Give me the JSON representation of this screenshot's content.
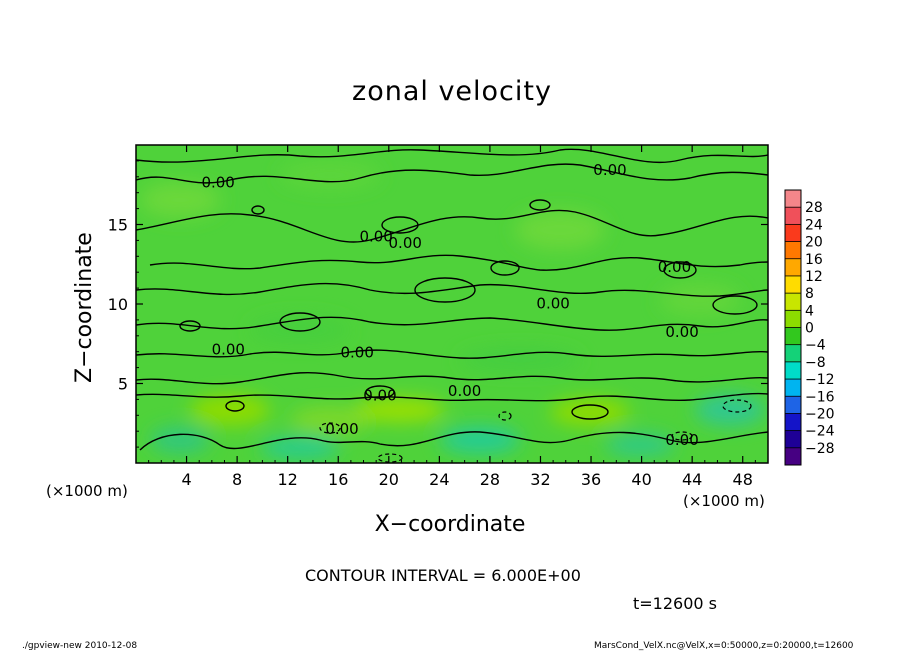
{
  "chart_data": {
    "type": "heatmap",
    "title": "zonal velocity",
    "xlabel": "X−coordinate",
    "ylabel": "Z−coordinate",
    "x_unit_label": "(×1000 m)",
    "x_range": [
      0,
      50
    ],
    "y_range": [
      0,
      20
    ],
    "x_ticks": [
      4,
      8,
      12,
      16,
      20,
      24,
      28,
      32,
      36,
      40,
      44,
      48
    ],
    "y_ticks": [
      5,
      10,
      15
    ],
    "colorbar": {
      "labels": [
        "28",
        "24",
        "20",
        "16",
        "12",
        "8",
        "4",
        "0",
        "−4",
        "−8",
        "−12",
        "−16",
        "−20",
        "−24",
        "−28"
      ],
      "colors": [
        "#f4868a",
        "#f0505a",
        "#fa3a1c",
        "#ff7800",
        "#ffa800",
        "#ffdc00",
        "#c8e600",
        "#8cdc00",
        "#32c81e",
        "#14d278",
        "#00dcc8",
        "#00b4f0",
        "#1e64e6",
        "#1414c8",
        "#1e0096",
        "#460082"
      ]
    },
    "contour_labels": [
      {
        "text": "0.00",
        "x": 6.5,
        "z": 17.7
      },
      {
        "text": "0.00",
        "x": 19.0,
        "z": 14.3
      },
      {
        "text": "0.00",
        "x": 21.3,
        "z": 13.9
      },
      {
        "text": "0.00",
        "x": 37.5,
        "z": 18.5
      },
      {
        "text": "0.00",
        "x": 42.6,
        "z": 12.4
      },
      {
        "text": "0.00",
        "x": 33.0,
        "z": 10.1
      },
      {
        "text": "0.00",
        "x": 43.2,
        "z": 8.3
      },
      {
        "text": "0.00",
        "x": 7.3,
        "z": 7.2
      },
      {
        "text": "0.00",
        "x": 17.5,
        "z": 7.0
      },
      {
        "text": "0.00",
        "x": 19.3,
        "z": 4.3
      },
      {
        "text": "0.00",
        "x": 26.0,
        "z": 4.6
      },
      {
        "text": "0.00",
        "x": 16.3,
        "z": 2.2
      },
      {
        "text": "0.00",
        "x": 43.2,
        "z": 1.5
      }
    ],
    "contour_interval_text": "CONTOUR INTERVAL = 6.000E+00"
  },
  "annotations": {
    "time": "t=12600 s",
    "footer_left": "./gpview-new  2010-12-08",
    "footer_right": "MarsCond_VelX.nc@VelX,x=0:50000,z=0:20000,t=12600"
  }
}
